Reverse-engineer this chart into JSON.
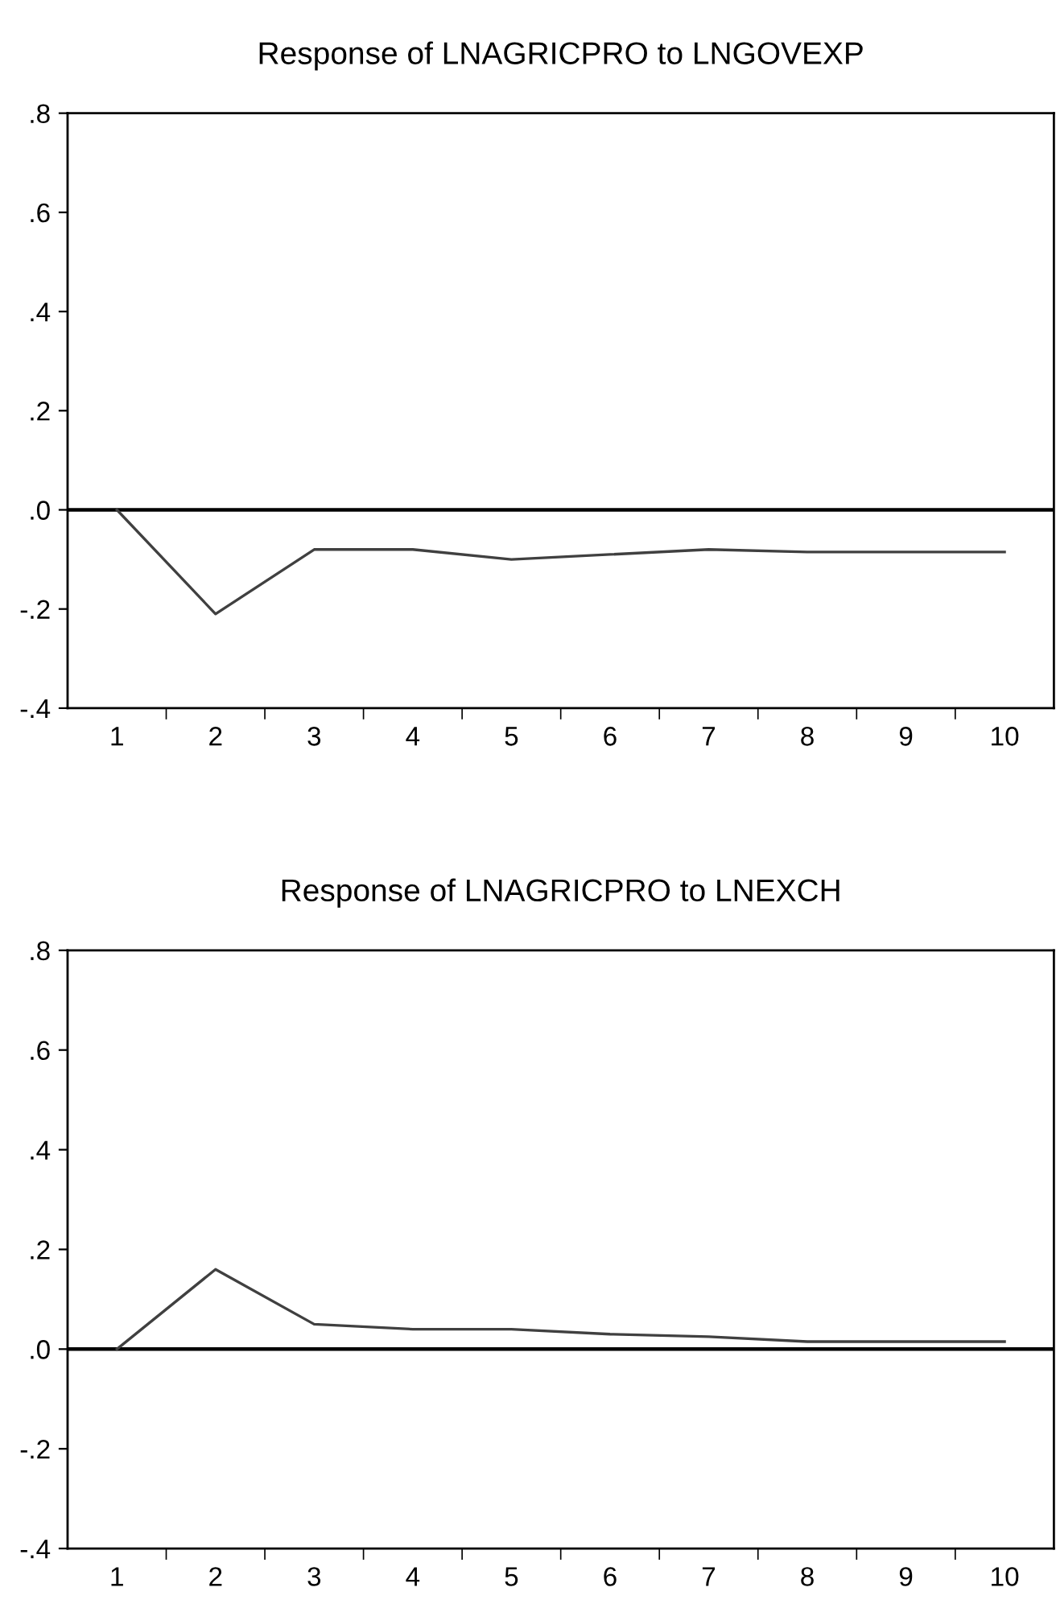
{
  "chart_data": [
    {
      "type": "line",
      "title": "Response of LNAGRICPRO to LNGOVEXP",
      "categories": [
        "1",
        "2",
        "3",
        "4",
        "5",
        "6",
        "7",
        "8",
        "9",
        "10"
      ],
      "series": [
        {
          "color": "#404040",
          "values": [
            0,
            -0.21,
            -0.08,
            -0.08,
            -0.1,
            -0.09,
            -0.08,
            -0.085,
            -0.085,
            -0.085
          ]
        }
      ],
      "ylim": [
        -0.4,
        0.8
      ],
      "yticks": [
        {
          "value": -0.4,
          "label": "-.4"
        },
        {
          "value": -0.2,
          "label": "-.2"
        },
        {
          "value": 0,
          "label": ".0"
        },
        {
          "value": 0.2,
          "label": ".2"
        },
        {
          "value": 0.4,
          "label": ".4"
        },
        {
          "value": 0.6,
          "label": ".6"
        },
        {
          "value": 0.8,
          "label": ".8"
        }
      ],
      "ref_lines": [
        {
          "axis": "y",
          "value": 0,
          "color": "#000000"
        }
      ],
      "grid": false,
      "legend": false,
      "marker": "none",
      "line_style": "solid"
    },
    {
      "type": "line",
      "title": "Response of LNAGRICPRO to LNEXCH",
      "categories": [
        "1",
        "2",
        "3",
        "4",
        "5",
        "6",
        "7",
        "8",
        "9",
        "10"
      ],
      "series": [
        {
          "color": "#404040",
          "values": [
            0,
            0.16,
            0.05,
            0.04,
            0.04,
            0.03,
            0.025,
            0.015,
            0.015,
            0.015
          ]
        }
      ],
      "ylim": [
        -0.4,
        0.8
      ],
      "yticks": [
        {
          "value": -0.4,
          "label": "-.4"
        },
        {
          "value": -0.2,
          "label": "-.2"
        },
        {
          "value": 0,
          "label": ".0"
        },
        {
          "value": 0.2,
          "label": ".2"
        },
        {
          "value": 0.4,
          "label": ".4"
        },
        {
          "value": 0.6,
          "label": ".6"
        },
        {
          "value": 0.8,
          "label": ".8"
        }
      ],
      "ref_lines": [
        {
          "axis": "y",
          "value": 0,
          "color": "#000000"
        }
      ],
      "grid": false,
      "legend": false,
      "marker": "none",
      "line_style": "solid"
    }
  ]
}
